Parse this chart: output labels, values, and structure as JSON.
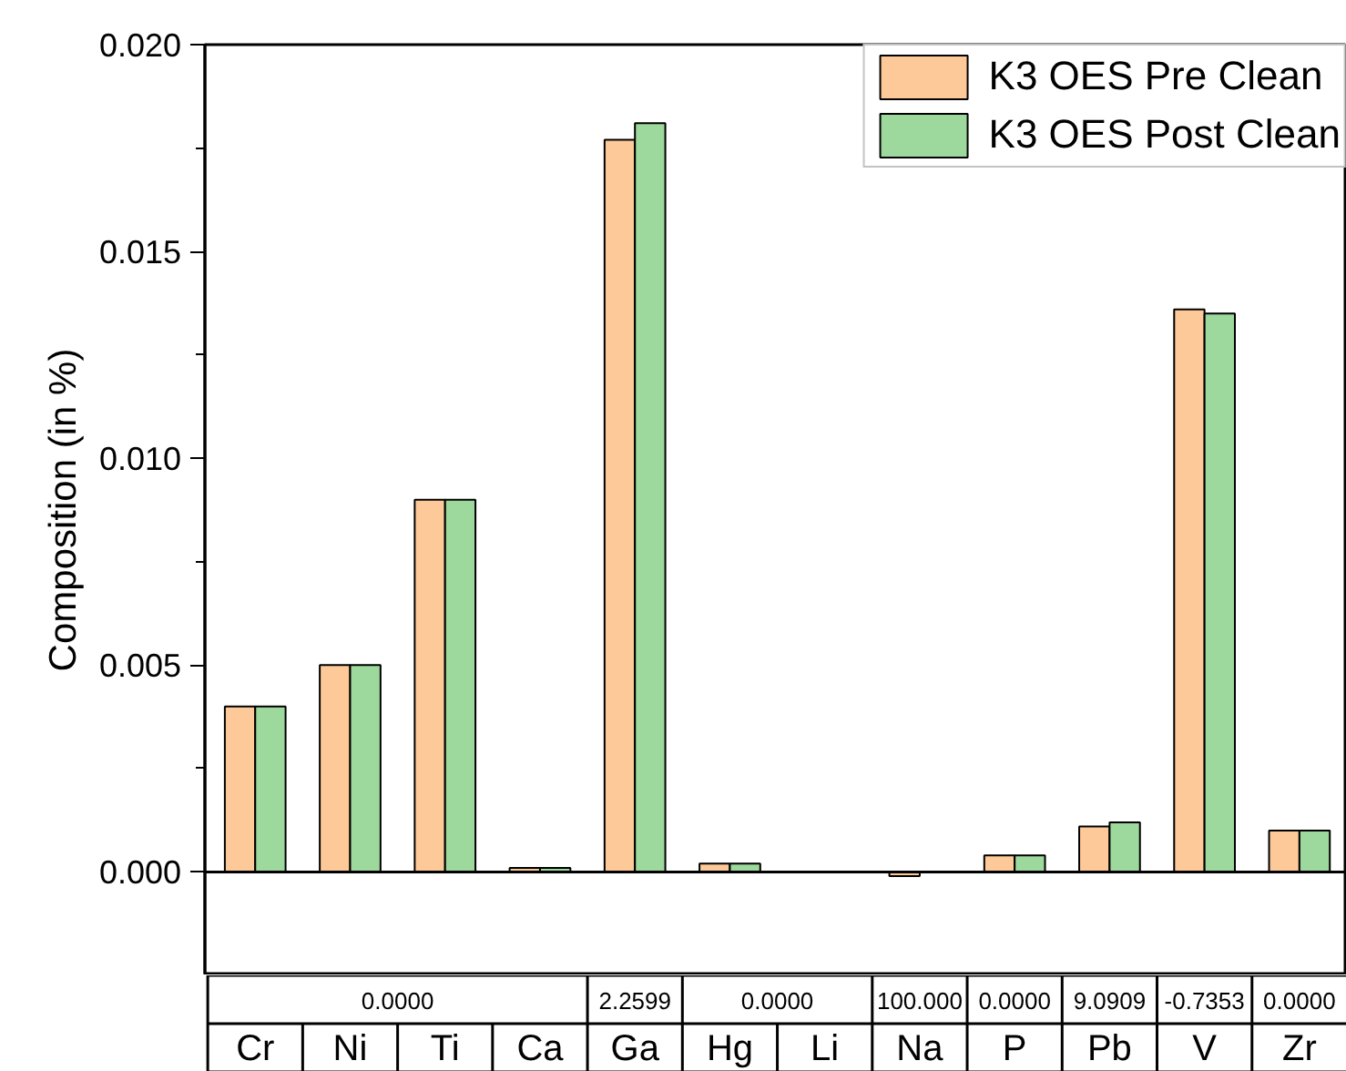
{
  "chart_data": {
    "type": "bar",
    "ylabel": "Composition (in %)",
    "categories": [
      "Cr",
      "Ni",
      "Ti",
      "Ca",
      "Ga",
      "Hg",
      "Li",
      "Na",
      "P",
      "Pb",
      "V",
      "Zr"
    ],
    "series": [
      {
        "name": "K3 OES Pre Clean",
        "color": "#fdc998",
        "values": [
          0.004,
          0.005,
          0.009,
          0.0001,
          0.0177,
          0.0002,
          0.0,
          -0.0001,
          0.0004,
          0.0011,
          0.0136,
          0.001
        ]
      },
      {
        "name": "K3 OES Post Clean",
        "color": "#9dd89d",
        "values": [
          0.004,
          0.005,
          0.009,
          0.0001,
          0.0181,
          0.0002,
          0.0,
          0.0,
          0.0004,
          0.0012,
          0.0135,
          0.001
        ]
      }
    ],
    "ylim": [
      -0.0025,
      0.02
    ],
    "yticks": [
      {
        "value": -0.0025,
        "label": null
      },
      {
        "value": 0.0,
        "label": "0.000"
      },
      {
        "value": 0.0025,
        "label": null
      },
      0.005,
      {
        "value": 0.0075,
        "label": null
      },
      {
        "value": 0.01,
        "label": "0.010"
      },
      {
        "value": 0.0125,
        "label": null
      },
      0.015,
      {
        "value": 0.0175,
        "label": null
      },
      {
        "value": 0.02,
        "label": "0.020"
      }
    ],
    "tick_labels": "y",
    "ref_lines": [
      {
        "axis": "y",
        "value": 0.0
      }
    ],
    "annotations": [
      "0.0000",
      "2.2599",
      "0.0000",
      "100.000",
      "0.0000",
      "9.0909",
      "-0.7353",
      "0.0000"
    ],
    "grid": false,
    "legend": "top right"
  }
}
